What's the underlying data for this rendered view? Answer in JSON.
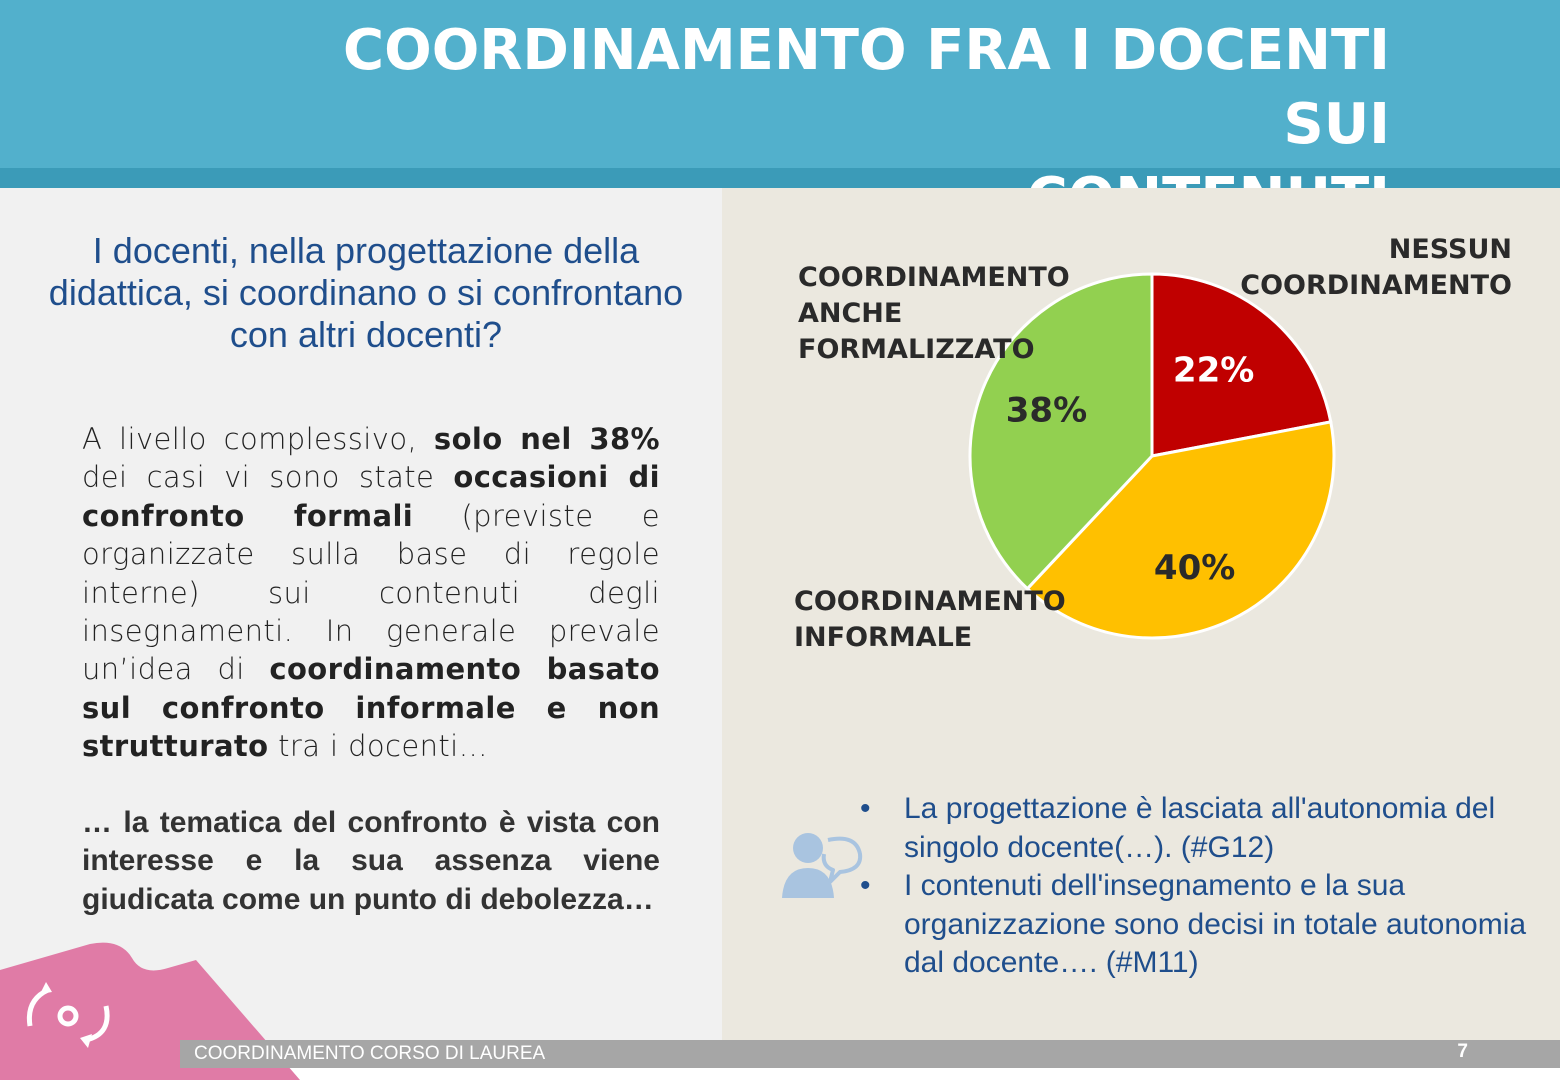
{
  "header": {
    "title_line1": "COORDINAMENTO FRA I DOCENTI SUI",
    "title_line2": "CONTENUTI"
  },
  "left": {
    "question": "I docenti, nella progettazione della didattica, si coordinano o si confrontano con altri docenti?",
    "para1": {
      "t1": "A livello complessivo, ",
      "b1": "solo nel 38%",
      "t2": " dei casi vi sono state ",
      "b2": "occasioni di confronto formali",
      "t3": " (previste e organizzate sulla base di regole interne) sui contenuti degli insegnamenti. In generale prevale un’idea di ",
      "b3": "coordinamento basato sul confronto informale e non strutturato",
      "t4": " tra i docenti…"
    },
    "para2": "… la tematica del confronto è vista con interesse e la sua assenza viene giudicata come un punto di debolezza…"
  },
  "chart_data": {
    "type": "pie",
    "slices": [
      {
        "label": "NESSUN COORDINAMENTO",
        "value": 22,
        "display": "22%",
        "color": "#c00000"
      },
      {
        "label": "COORDINAMENTO INFORMALE",
        "value": 40,
        "display": "40%",
        "color": "#ffc000"
      },
      {
        "label": "COORDINAMENTO ANCHE FORMALIZZATO",
        "value": 38,
        "display": "38%",
        "color": "#92d050"
      }
    ],
    "start_angle_deg": 0,
    "direction": "clockwise"
  },
  "pie_labels": {
    "nessun_line1": "NESSUN",
    "nessun_line2": "COORDINAMENTO",
    "informale_line1": "COORDINAMENTO",
    "informale_line2": "INFORMALE",
    "formalizzato_line1": "COORDINAMENTO",
    "formalizzato_line2": "ANCHE",
    "formalizzato_line3": "FORMALIZZATO"
  },
  "quotes": {
    "icon": "user-speech-icon",
    "items": [
      "La progettazione è lasciata all'autonomia del singolo docente(…). (#G12)",
      "I contenuti dell'insegnamento e la sua organizzazione sono decisi in totale autonomia dal docente…. (#M11)"
    ]
  },
  "footer": {
    "text": "COORDINAMENTO  CORSO DI LAUREA",
    "page": "7"
  },
  "colors": {
    "header": "#52b0cc",
    "question": "#1f4e8c",
    "puzzle": "#e07ba6"
  }
}
